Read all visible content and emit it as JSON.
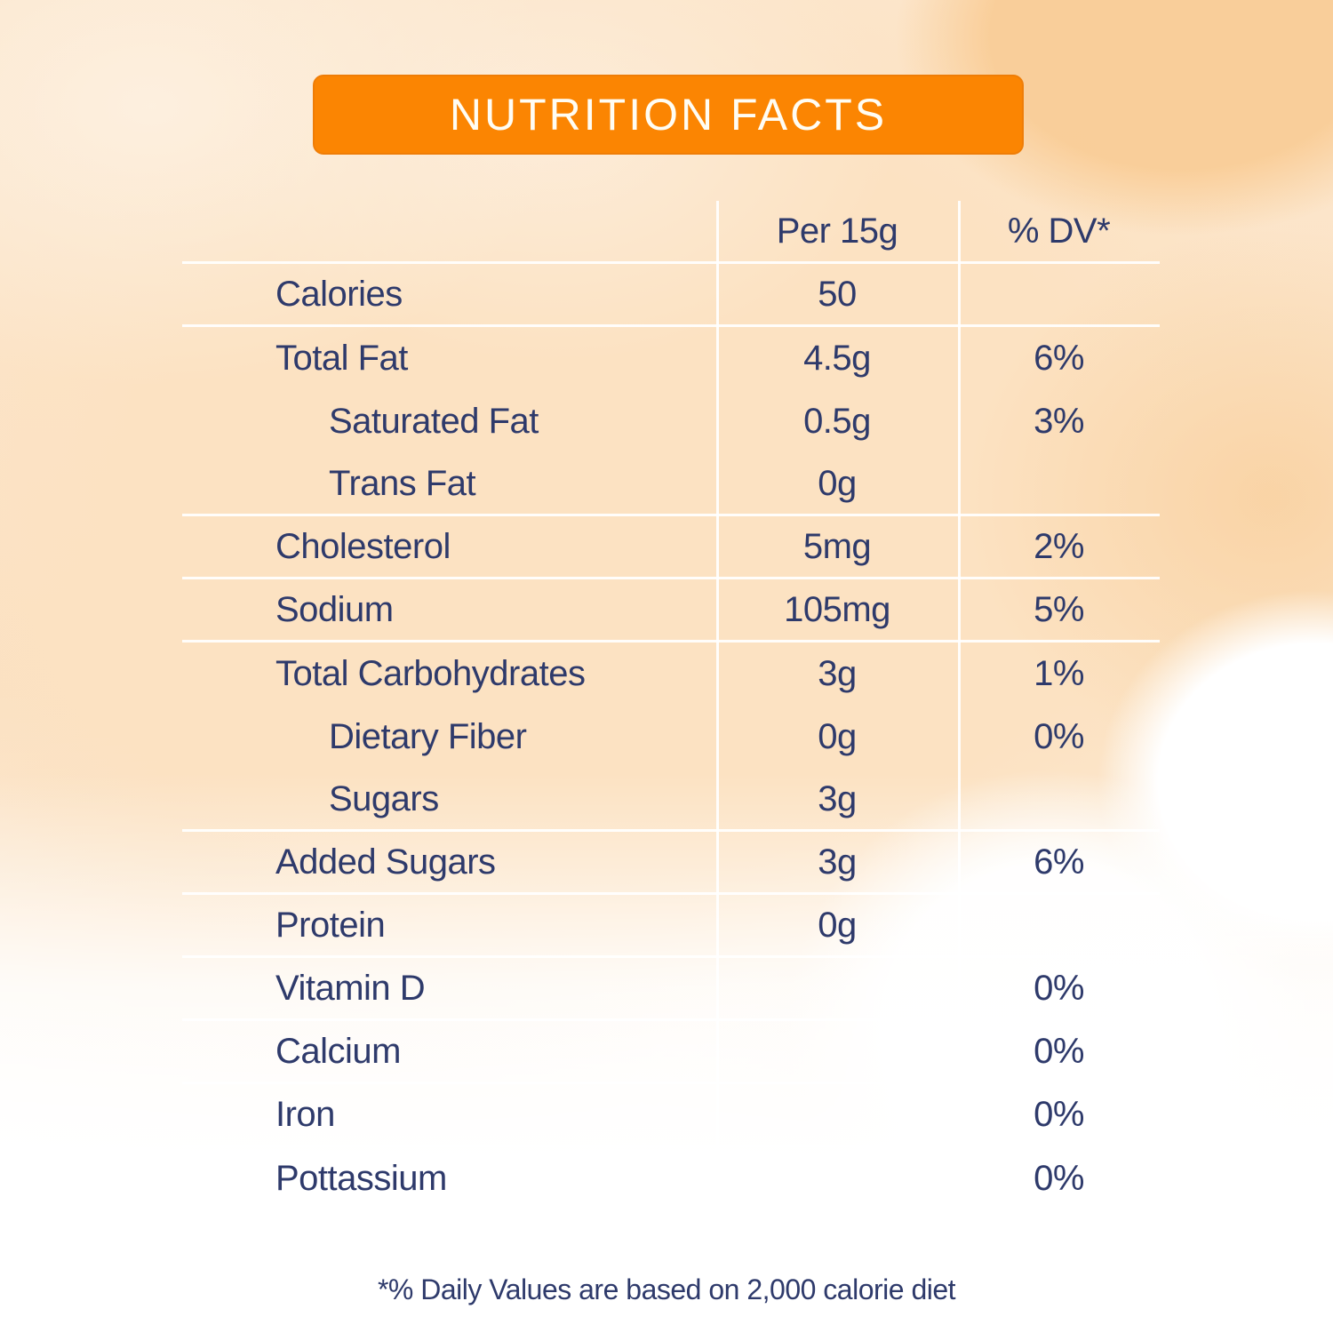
{
  "title": "NUTRITION FACTS",
  "colors": {
    "banner": "#FB8502",
    "banner_text": "#FFFDF4",
    "text": "#2E3A6B",
    "rule": "#FFFFFF",
    "background_peach": "#FCE3C5"
  },
  "table": {
    "columns": {
      "amount": "Per 15g",
      "dv": "% DV*"
    },
    "rows": [
      {
        "label": "Calories",
        "amount": "50",
        "dv": "",
        "indent": false,
        "rule_below": true
      },
      {
        "label": "Total Fat",
        "amount": "4.5g",
        "dv": "6%",
        "indent": false,
        "rule_below": false
      },
      {
        "label": "Saturated Fat",
        "amount": "0.5g",
        "dv": "3%",
        "indent": true,
        "rule_below": false
      },
      {
        "label": "Trans Fat",
        "amount": "0g",
        "dv": "",
        "indent": true,
        "rule_below": true
      },
      {
        "label": "Cholesterol",
        "amount": "5mg",
        "dv": "2%",
        "indent": false,
        "rule_below": true
      },
      {
        "label": "Sodium",
        "amount": "105mg",
        "dv": "5%",
        "indent": false,
        "rule_below": true
      },
      {
        "label": "Total Carbohydrates",
        "amount": "3g",
        "dv": "1%",
        "indent": false,
        "rule_below": false
      },
      {
        "label": "Dietary Fiber",
        "amount": "0g",
        "dv": "0%",
        "indent": true,
        "rule_below": false
      },
      {
        "label": "Sugars",
        "amount": "3g",
        "dv": "",
        "indent": true,
        "rule_below": true
      },
      {
        "label": "Added Sugars",
        "amount": "3g",
        "dv": "6%",
        "indent": false,
        "rule_below": true
      },
      {
        "label": "Protein",
        "amount": "0g",
        "dv": "",
        "indent": false,
        "rule_below": true
      },
      {
        "label": "Vitamin D",
        "amount": "",
        "dv": "0%",
        "indent": false,
        "rule_below": true
      },
      {
        "label": "Calcium",
        "amount": "",
        "dv": "0%",
        "indent": false,
        "rule_below": true
      },
      {
        "label": "Iron",
        "amount": "",
        "dv": "0%",
        "indent": false,
        "rule_below": true
      },
      {
        "label": "Pottassium",
        "amount": "",
        "dv": "0%",
        "indent": false,
        "rule_below": false
      }
    ]
  },
  "footnote": "*% Daily Values are based on 2,000 calorie diet"
}
